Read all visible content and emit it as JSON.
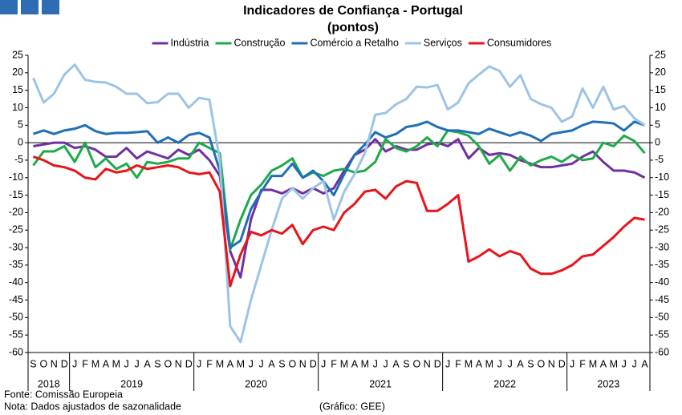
{
  "chart_data": {
    "type": "line",
    "title": "Indicadores de Confiança - Portugal",
    "subtitle": "(pontos)",
    "categories": [
      "S",
      "O",
      "N",
      "D",
      "J",
      "F",
      "M",
      "A",
      "M",
      "J",
      "J",
      "A",
      "S",
      "O",
      "N",
      "D",
      "J",
      "F",
      "M",
      "A",
      "M",
      "J",
      "J",
      "A",
      "S",
      "O",
      "N",
      "D",
      "J",
      "F",
      "M",
      "A",
      "M",
      "J",
      "J",
      "A",
      "S",
      "O",
      "N",
      "D",
      "J",
      "F",
      "M",
      "A",
      "M",
      "J",
      "J",
      "A",
      "S",
      "O",
      "N",
      "D",
      "J",
      "F",
      "M",
      "A",
      "M",
      "J",
      "J",
      "A"
    ],
    "x_groups": [
      {
        "label": "2018",
        "span": 4
      },
      {
        "label": "2019",
        "span": 12
      },
      {
        "label": "2020",
        "span": 12
      },
      {
        "label": "2021",
        "span": 12
      },
      {
        "label": "2022",
        "span": 12
      },
      {
        "label": "2023",
        "span": 8
      }
    ],
    "ylim": [
      -60,
      25
    ],
    "yticks": [
      25,
      20,
      15,
      10,
      5,
      0,
      -5,
      -10,
      -15,
      -20,
      -25,
      -30,
      -35,
      -40,
      -45,
      -50,
      -55,
      -60
    ],
    "y2lim": [
      -60,
      25
    ],
    "y2ticks": [
      25,
      20,
      15,
      10,
      5,
      0,
      -5,
      -10,
      -15,
      -20,
      -25,
      -30,
      -35,
      -40,
      -45,
      -50,
      -55,
      -60
    ],
    "grid": false,
    "legend": "top",
    "series": [
      {
        "name": "Indústria",
        "color": "#7030a0",
        "values": [
          -1,
          -0.5,
          0,
          0,
          -1.5,
          -1,
          -2,
          -4,
          -4,
          -1.5,
          -4.5,
          -2.5,
          -3.5,
          -4.5,
          -2,
          -3.5,
          -2,
          -5,
          -9.5,
          -31,
          -38.5,
          -22,
          -13.5,
          -13.5,
          -14.5,
          -13,
          -14.5,
          -13,
          -14.5,
          -13,
          -8,
          -3.5,
          -2,
          1,
          -2.5,
          -1,
          -2,
          -2,
          -0.5,
          0,
          -1,
          1,
          -4.5,
          -1.5,
          -3.5,
          -3,
          -3.5,
          -5,
          -6,
          -7,
          -7,
          -6.5,
          -6,
          -4,
          -2.5,
          -5.5,
          -8,
          -8,
          -8.5,
          -10
        ]
      },
      {
        "name": "Construção",
        "color": "#1faa4a",
        "values": [
          -6.5,
          -2.5,
          -2.5,
          -1,
          -5.5,
          0,
          -7,
          -4.5,
          -7.5,
          -6,
          -10,
          -5.5,
          -6,
          -5.5,
          -4.5,
          -4.5,
          0,
          -1.5,
          -3,
          -30.5,
          -22,
          -15,
          -12,
          -8,
          -6.5,
          -4.5,
          -10,
          -8.5,
          -9.5,
          -8,
          -7.5,
          -8.5,
          -8,
          -5.5,
          1,
          -1.5,
          -2.5,
          -1,
          1.5,
          -1,
          3.5,
          3,
          2,
          -1,
          -6,
          -3.5,
          -8,
          -4,
          -6.5,
          -5,
          -4,
          -5.5,
          -3.5,
          -5,
          -4.5,
          0,
          -1,
          2,
          0.5,
          -3
        ]
      },
      {
        "name": "Comércio a Retalho",
        "color": "#1f6fb6",
        "values": [
          2.5,
          3.5,
          2.5,
          3.5,
          4,
          5,
          3.3,
          2.5,
          2.8,
          2.8,
          3,
          3.3,
          0,
          1.5,
          0,
          2.2,
          2.8,
          1.5,
          -8,
          -30,
          -28,
          -19,
          -14,
          -9.5,
          -9.5,
          -6,
          -10,
          -8,
          -11,
          -15,
          -9,
          -3.5,
          -0.5,
          3,
          1.5,
          2.5,
          4.5,
          5,
          6,
          4.5,
          3.5,
          3.5,
          3,
          2.5,
          4,
          3,
          2,
          3,
          2,
          0.5,
          2.5,
          3,
          3.5,
          5,
          6,
          5.8,
          5.5,
          3.5,
          6,
          5
        ]
      },
      {
        "name": "Serviços",
        "color": "#9dc3e6",
        "values": [
          18.5,
          11.5,
          14,
          19.5,
          22.3,
          18,
          17.4,
          17.2,
          16,
          14,
          14,
          11.3,
          11.6,
          14,
          14,
          10,
          12.8,
          12.3,
          -5,
          -52.5,
          -57,
          -45,
          -35,
          -25,
          -16,
          -13,
          -16,
          -13,
          -11,
          -22,
          -14,
          -9,
          -3,
          8,
          8.5,
          11,
          12.5,
          16,
          15.8,
          16.5,
          9.5,
          11.5,
          17,
          19.5,
          21.8,
          20.5,
          16,
          19.3,
          12.5,
          11,
          10,
          6,
          7.5,
          15.5,
          10,
          16,
          9.5,
          10.5,
          7,
          5
        ]
      },
      {
        "name": "Consumidores",
        "color": "#e8141a",
        "values": [
          -4,
          -5,
          -6.5,
          -7,
          -8,
          -10,
          -10.5,
          -7.5,
          -8.5,
          -8,
          -6.5,
          -7.5,
          -7,
          -6.5,
          -7,
          -8.5,
          -9,
          -8.5,
          -14,
          -41,
          -32,
          -25.5,
          -26.5,
          -25,
          -26,
          -23.5,
          -29,
          -25,
          -24,
          -25,
          -20,
          -17.5,
          -14,
          -13.5,
          -16,
          -12.5,
          -11,
          -11.5,
          -19.5,
          -19.5,
          -17.5,
          -15,
          -34,
          -32.5,
          -30.5,
          -32.5,
          -31,
          -32,
          -36,
          -37.5,
          -37.5,
          -36.5,
          -35,
          -32.5,
          -32,
          -29.5,
          -27,
          -24,
          -21.5,
          -22
        ]
      }
    ],
    "notes": [
      "Fonte: Comissão Europeia",
      "Nota: Dados ajustados de sazonalidade"
    ],
    "credit": "(Gráfico: GEE)"
  }
}
